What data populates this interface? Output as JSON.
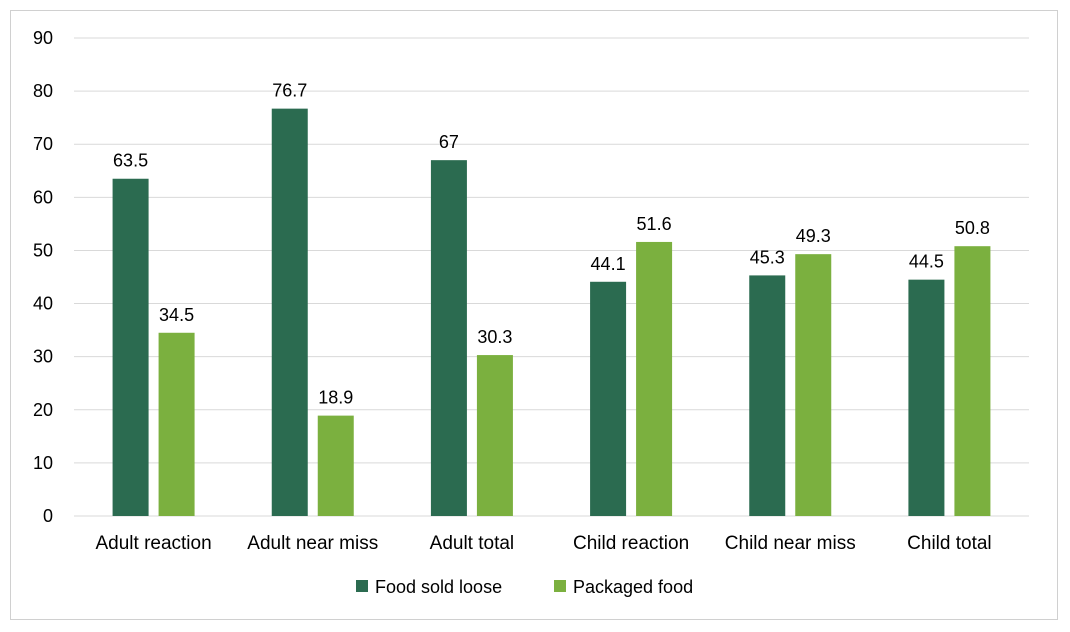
{
  "chart_data": {
    "type": "bar",
    "categories": [
      "Adult reaction",
      "Adult near miss",
      "Adult total",
      "Child reaction",
      "Child near miss",
      "Child total"
    ],
    "series": [
      {
        "name": "Food sold loose",
        "values": [
          63.5,
          76.7,
          67,
          44.1,
          45.3,
          44.5
        ],
        "color": "#2b6b50",
        "labels": [
          "63.5",
          "76.7",
          "67",
          "44.1",
          "45.3",
          "44.5"
        ]
      },
      {
        "name": "Packaged food",
        "values": [
          34.5,
          18.9,
          30.3,
          51.6,
          49.3,
          50.8
        ],
        "color": "#7bb03f",
        "labels": [
          "34.5",
          "18.9",
          "30.3",
          "51.6",
          "49.3",
          "50.8"
        ]
      }
    ],
    "ylim": [
      0,
      90
    ],
    "yticks": [
      0,
      10,
      20,
      30,
      40,
      50,
      60,
      70,
      80,
      90
    ],
    "grid": true,
    "legend_position": "bottom",
    "title": "",
    "xlabel": "",
    "ylabel": ""
  }
}
